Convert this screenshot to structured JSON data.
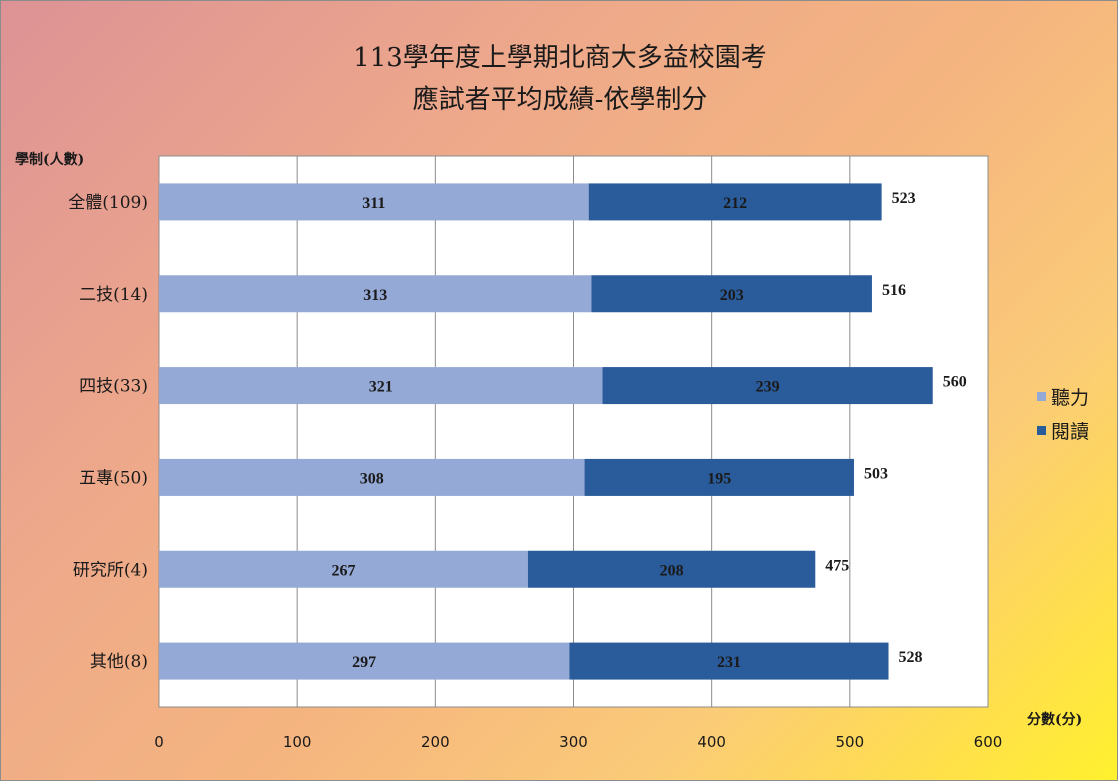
{
  "chart_data": {
    "type": "bar",
    "orientation": "horizontal",
    "stacked": true,
    "title": [
      "113學年度上學期北商大多益校園考",
      "應試者平均成績-依學制分"
    ],
    "ylabel": "學制(人數)",
    "xlabel": "分數(分)",
    "xlim": [
      0,
      600
    ],
    "xticks": [
      0,
      100,
      200,
      300,
      400,
      500,
      600
    ],
    "grid": "vertical",
    "legend_position": "right",
    "categories": [
      "全體(109)",
      "二技(14)",
      "四技(33)",
      "五專(50)",
      "研究所(4)",
      "其他(8)"
    ],
    "series": [
      {
        "name": "聽力",
        "color": "#95a9d6",
        "values": [
          311,
          313,
          321,
          308,
          267,
          297
        ]
      },
      {
        "name": "閱讀",
        "color": "#2a5b9a",
        "values": [
          212,
          203,
          239,
          195,
          208,
          231
        ]
      }
    ],
    "totals": [
      523,
      516,
      560,
      503,
      475,
      528
    ]
  }
}
